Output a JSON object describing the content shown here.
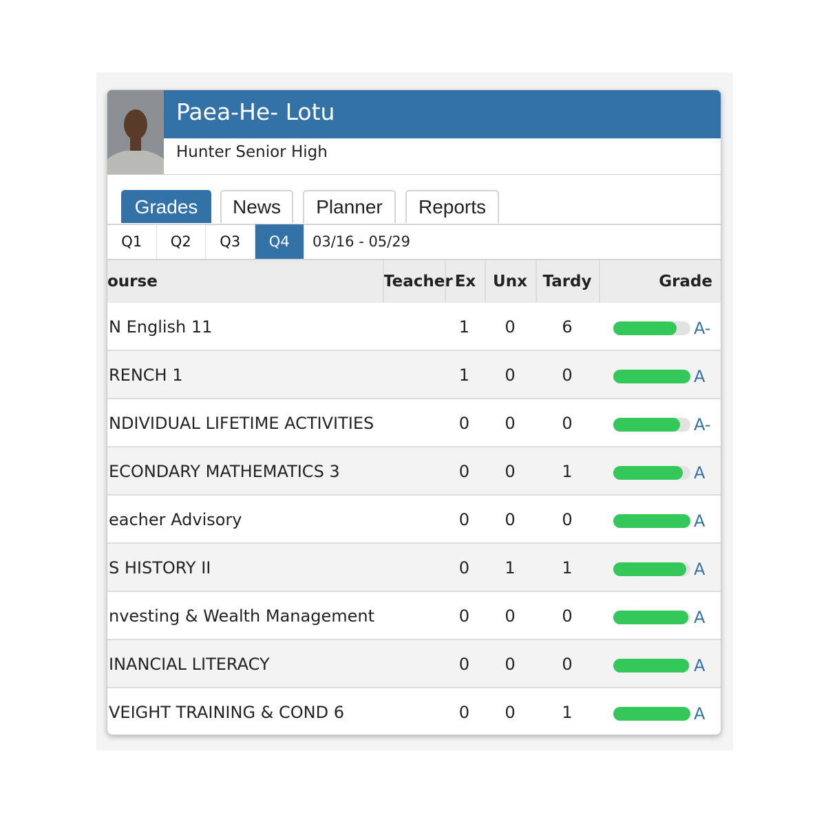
{
  "header": {
    "name": "Paea-He- Lotu",
    "school": "Hunter Senior High"
  },
  "tabs": [
    "Grades",
    "News",
    "Planner",
    "Reports"
  ],
  "active_tab": 0,
  "quarters": [
    "Q1",
    "Q2",
    "Q3",
    "Q4"
  ],
  "active_quarter": 3,
  "date_range": "03/16 - 05/29",
  "table": {
    "columns": [
      "ourse",
      "Teacher",
      "Ex",
      "Unx",
      "Tardy",
      "Grade"
    ],
    "rows": [
      {
        "course": "N English 11",
        "ex": 1,
        "unx": 0,
        "tardy": 6,
        "grade": "A-",
        "progress": 82
      },
      {
        "course": "RENCH 1",
        "ex": 1,
        "unx": 0,
        "tardy": 0,
        "grade": "A",
        "progress": 100
      },
      {
        "course": "NDIVIDUAL LIFETIME ACTIVITIES",
        "ex": 0,
        "unx": 0,
        "tardy": 0,
        "grade": "A-",
        "progress": 87
      },
      {
        "course": "ECONDARY MATHEMATICS 3",
        "ex": 0,
        "unx": 0,
        "tardy": 1,
        "grade": "A",
        "progress": 90
      },
      {
        "course": "eacher Advisory",
        "ex": 0,
        "unx": 0,
        "tardy": 0,
        "grade": "A",
        "progress": 100
      },
      {
        "course": "S HISTORY II",
        "ex": 0,
        "unx": 1,
        "tardy": 1,
        "grade": "A",
        "progress": 95
      },
      {
        "course": "nvesting & Wealth Management",
        "ex": 0,
        "unx": 0,
        "tardy": 0,
        "grade": "A",
        "progress": 97
      },
      {
        "course": "INANCIAL LITERACY",
        "ex": 0,
        "unx": 0,
        "tardy": 0,
        "grade": "A",
        "progress": 98
      },
      {
        "course": "VEIGHT TRAINING & COND 6",
        "ex": 0,
        "unx": 0,
        "tardy": 1,
        "grade": "A",
        "progress": 100
      }
    ]
  }
}
